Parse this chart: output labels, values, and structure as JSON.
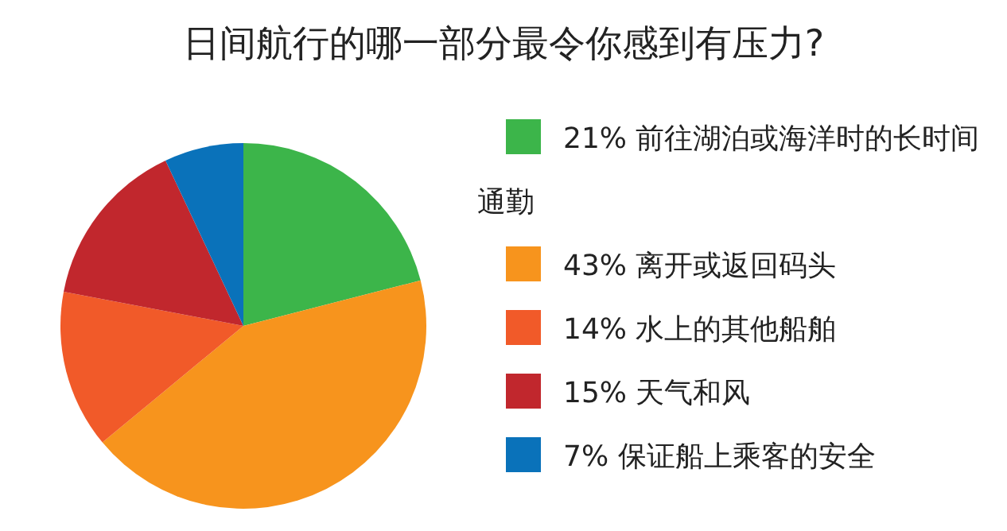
{
  "chart_data": {
    "type": "pie",
    "title": "日间航行的哪一部分最令你感到有压力?",
    "categories": [
      "前往湖泊或海洋时的长时间通勤",
      "离开或返回码头",
      "水上的其他船舶",
      "天气和风",
      "保证船上乘客的安全"
    ],
    "values": [
      21,
      43,
      14,
      15,
      7
    ],
    "value_labels": [
      "21%",
      "43%",
      "14%",
      "15%",
      "7%"
    ],
    "colors": [
      "#3cb54a",
      "#f7941d",
      "#f15a29",
      "#c1272d",
      "#0a72ba"
    ],
    "legend": "right"
  }
}
